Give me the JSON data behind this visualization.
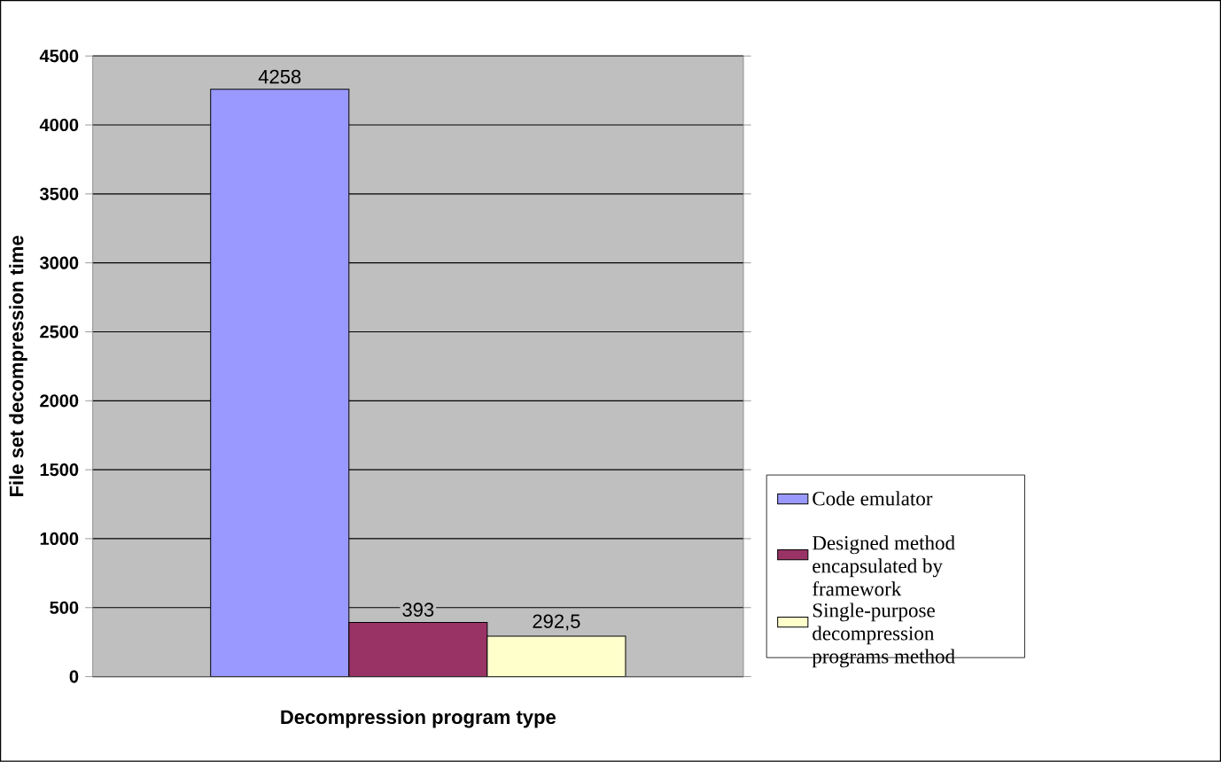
{
  "chart_data": {
    "type": "bar",
    "categories": [
      null
    ],
    "series": [
      {
        "name": "Code emulator",
        "color": "#9999ff",
        "values": [
          4258
        ],
        "value_labels": [
          "4258"
        ]
      },
      {
        "name": "Designed method encapsulated by framework",
        "color": "#993366",
        "values": [
          393
        ],
        "value_labels": [
          "393"
        ]
      },
      {
        "name": "Single-purpose decompression programs method",
        "color": "#ffffcc",
        "values": [
          292.5
        ],
        "value_labels": [
          "292,5"
        ]
      }
    ],
    "xlabel": "Decompression program type",
    "ylabel": "File set decompression time",
    "ylim": [
      0,
      4500
    ],
    "yticks": [
      0,
      500,
      1000,
      1500,
      2000,
      2500,
      3000,
      3500,
      4000,
      4500
    ],
    "grid": "y",
    "legend": "right"
  }
}
